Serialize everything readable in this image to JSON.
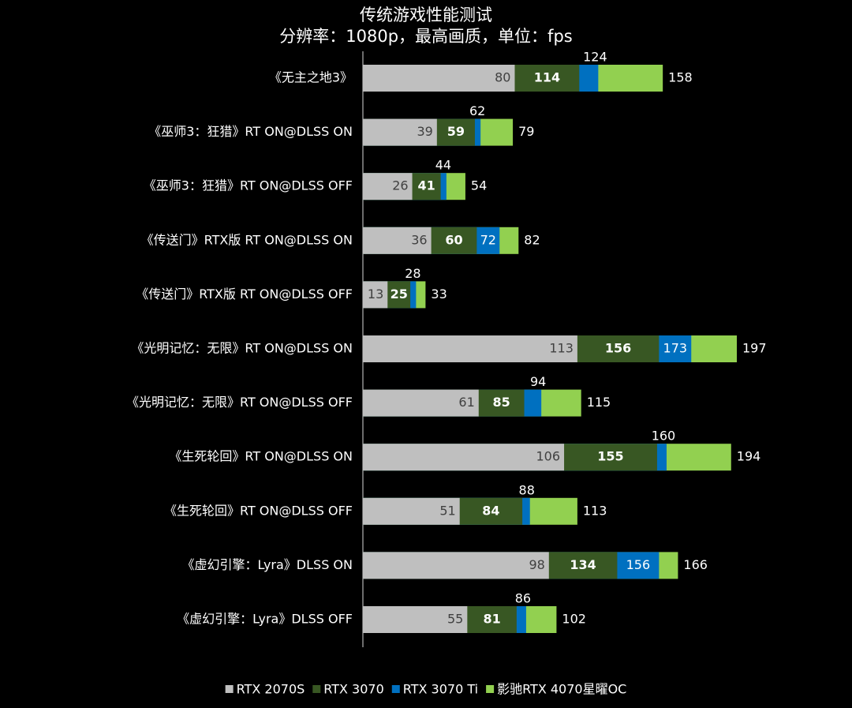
{
  "chart_data": {
    "type": "bar",
    "orientation": "horizontal",
    "overlap": true,
    "title": "传统游戏性能测试",
    "subtitle": "分辨率：1080p，最高画质，单位：fps",
    "categories": [
      "《无主之地3》",
      "《巫师3：狂猎》RT ON@DLSS ON",
      "《巫师3：狂猎》RT ON@DLSS OFF",
      "《传送门》RTX版 RT ON@DLSS ON",
      "《传送门》RTX版 RT ON@DLSS OFF",
      "《光明记忆：无限》RT ON@DLSS ON",
      "《光明记忆：无限》RT ON@DLSS OFF",
      "《生死轮回》RT ON@DLSS ON",
      "《生死轮回》RT ON@DLSS OFF",
      "《虚幻引擎：Lyra》DLSS ON",
      "《虚幻引擎：Lyra》DLSS OFF"
    ],
    "series": [
      {
        "name": "RTX 2070S",
        "color": "#bfbfbf",
        "values": [
          80,
          39,
          26,
          36,
          13,
          113,
          61,
          106,
          51,
          98,
          55
        ]
      },
      {
        "name": "RTX 3070",
        "color": "#385723",
        "values": [
          114,
          59,
          41,
          60,
          25,
          156,
          85,
          155,
          84,
          134,
          81
        ]
      },
      {
        "name": "RTX 3070 Ti",
        "color": "#0070c0",
        "values": [
          124,
          62,
          44,
          72,
          28,
          173,
          94,
          160,
          88,
          156,
          86
        ]
      },
      {
        "name": "影驰RTX 4070星曜OC",
        "color": "#92d050",
        "values": [
          158,
          79,
          54,
          82,
          33,
          197,
          115,
          194,
          113,
          166,
          102
        ]
      }
    ],
    "legend": "bottom"
  }
}
